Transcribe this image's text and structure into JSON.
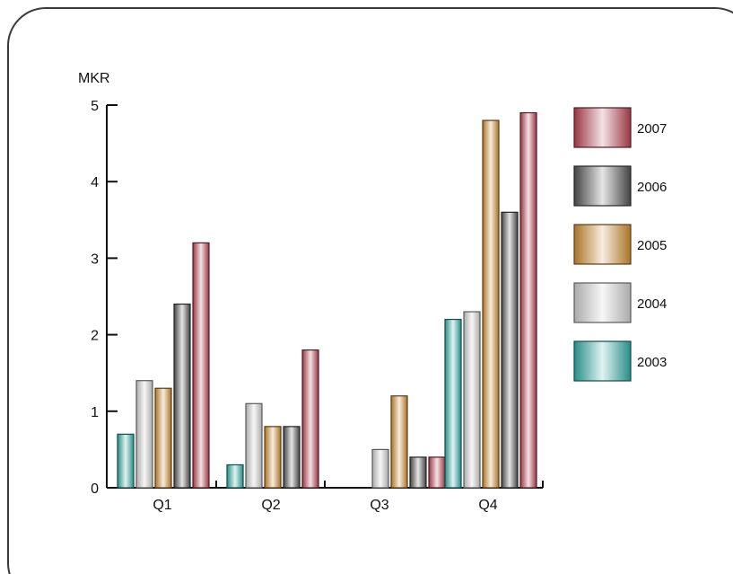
{
  "chart_data": {
    "type": "bar",
    "ylabel": "MKR",
    "ylim": [
      0,
      5
    ],
    "yticks": [
      0,
      1,
      2,
      3,
      4,
      5
    ],
    "categories": [
      "Q1",
      "Q2",
      "Q3",
      "Q4"
    ],
    "series": [
      {
        "name": "2003",
        "values": [
          0.7,
          0.3,
          0,
          2.2
        ],
        "color": "#2fa6a0"
      },
      {
        "name": "2004",
        "values": [
          1.4,
          1.1,
          0.5,
          2.3
        ],
        "color": "#c8c8c8"
      },
      {
        "name": "2005",
        "values": [
          1.3,
          0.8,
          1.2,
          4.8
        ],
        "color": "#c9872e"
      },
      {
        "name": "2006",
        "values": [
          2.4,
          0.8,
          0.4,
          3.6
        ],
        "color": "#505050"
      },
      {
        "name": "2007",
        "values": [
          3.2,
          1.8,
          0.4,
          4.9
        ],
        "color": "#b3404f"
      }
    ],
    "legend_position": "right",
    "legend_order": [
      "2007",
      "2006",
      "2005",
      "2004",
      "2003"
    ],
    "grid": false
  }
}
